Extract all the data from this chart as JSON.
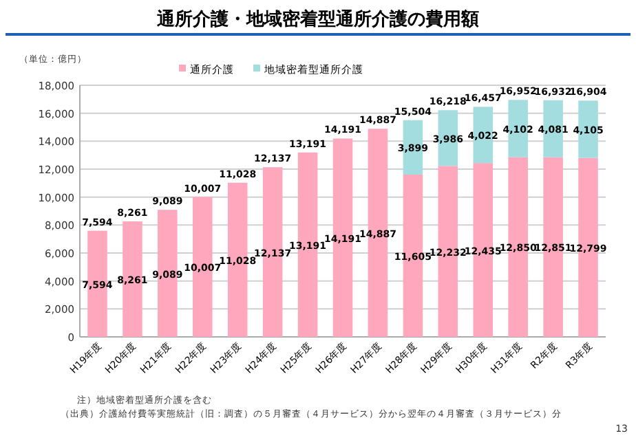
{
  "chart_data": {
    "type": "bar",
    "title": "通所介護・地域密着型通所介護の費用額",
    "stacked": true,
    "categories": [
      "H19年度",
      "H20年度",
      "H21年度",
      "H22年度",
      "H23年度",
      "H24年度",
      "H25年度",
      "H26年度",
      "H27年度",
      "H28年度",
      "H29年度",
      "H30年度",
      "H31年度",
      "R2年度",
      "R3年度"
    ],
    "series": [
      {
        "name": "通所介護",
        "color": "#ffa7bd",
        "values": [
          7594,
          8261,
          9089,
          10007,
          11028,
          12137,
          13191,
          14191,
          14887,
          11605,
          12232,
          12435,
          12850,
          12851,
          12799
        ],
        "value_labels": [
          "7,594",
          "8,261",
          "9,089",
          "10,007",
          "11,028",
          "12,137",
          "13,191",
          "14,191",
          "14,887",
          "11,605",
          "12,232",
          "12,435",
          "12,850",
          "12,851",
          "12,799"
        ]
      },
      {
        "name": "地域密着型通所介護",
        "color": "#a3dde0",
        "values": [
          null,
          null,
          null,
          null,
          null,
          null,
          null,
          null,
          null,
          3899,
          3986,
          4022,
          4102,
          4081,
          4105
        ],
        "value_labels": [
          null,
          null,
          null,
          null,
          null,
          null,
          null,
          null,
          null,
          "3,899",
          "3,986",
          "4,022",
          "4,102",
          "4,081",
          "4,105"
        ]
      }
    ],
    "totals": [
      "7,594",
      "8,261",
      "9,089",
      "10,007",
      "11,028",
      "12,137",
      "13,191",
      "14,191",
      "14,887",
      "15,504",
      "16,218",
      "16,457",
      "16,952",
      "16,932",
      "16,904"
    ],
    "ylim": [
      0,
      18000
    ],
    "yticks": [
      {
        "value": 0,
        "label": "0"
      },
      {
        "value": 2000,
        "label": "2,000"
      },
      {
        "value": 4000,
        "label": "4,000"
      },
      {
        "value": 6000,
        "label": "6,000"
      },
      {
        "value": 8000,
        "label": "8,000"
      },
      {
        "value": 10000,
        "label": "10,000"
      },
      {
        "value": 12000,
        "label": "12,000"
      },
      {
        "value": 14000,
        "label": "14,000"
      },
      {
        "value": 16000,
        "label": "16,000"
      },
      {
        "value": 18000,
        "label": "18,000"
      }
    ],
    "grid": "y",
    "legend": "top",
    "annotations": [
      "（単位：億円）",
      "注）地域密着型通所介護を含む",
      "（出典）介護給付費等実態統計（旧：調査）の５月審査（４月サービス）分から翌年の４月審査（３月サービス）分",
      "13"
    ]
  }
}
